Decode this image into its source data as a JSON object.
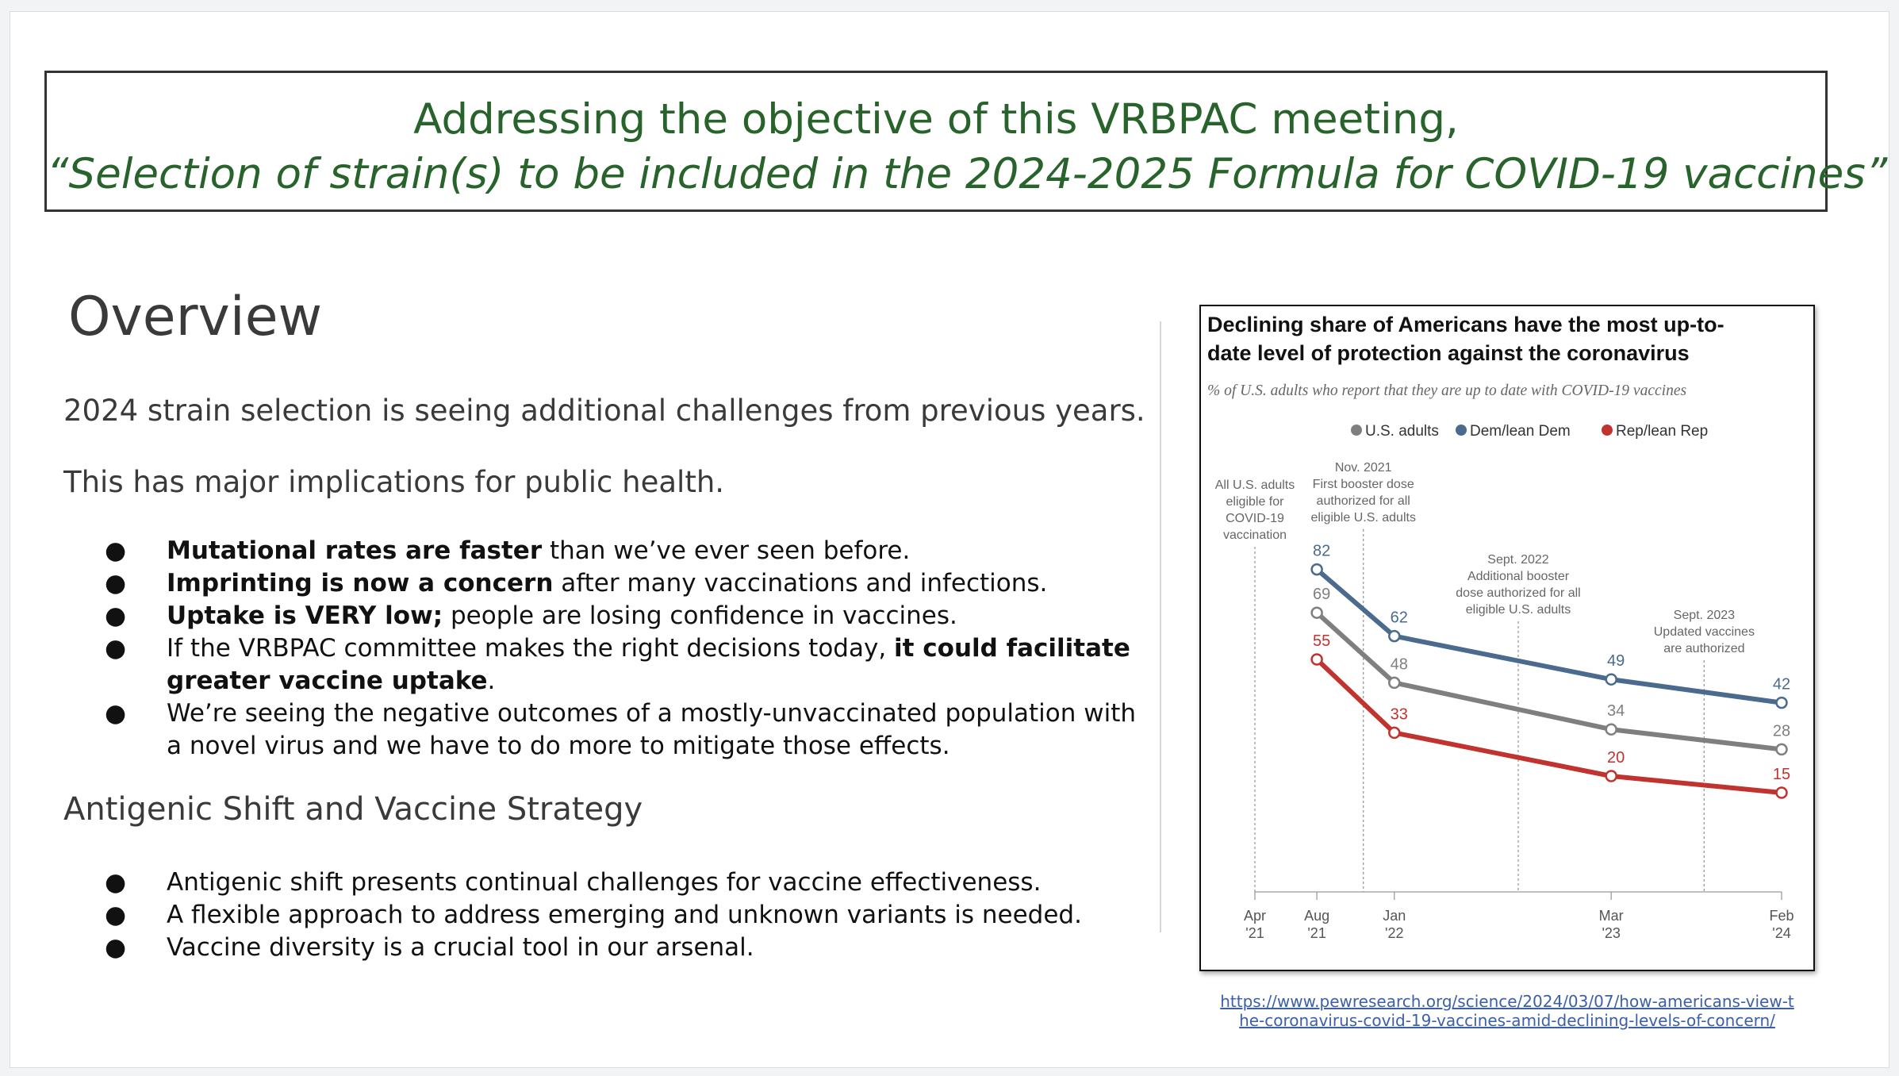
{
  "title": {
    "line1": "Addressing the objective of this VRBPAC meeting,",
    "line2": "“Selection of strain(s) to be included in the 2024-2025 Formula for COVID-19 vaccines”"
  },
  "overview": {
    "heading": "Overview",
    "para1": "2024 strain selection is seeing additional challenges from previous years.",
    "para2": "This has major implications for public health.",
    "bullets": [
      {
        "bold": "Mutational rates are faster",
        "rest": " than we’ve ever seen before."
      },
      {
        "bold": "Imprinting is now a concern",
        "rest": " after many vaccinations and infections."
      },
      {
        "bold": "Uptake is VERY low;",
        "rest": " people are losing confidence in vaccines."
      },
      {
        "pre": "If the VRBPAC committee makes the right decisions today, ",
        "bold": "it could facilitate greater vaccine uptake",
        "rest": "."
      },
      {
        "rest": "We’re seeing the negative outcomes of a mostly-unvaccinated population with a novel virus and we have to do more to mitigate those effects."
      }
    ],
    "bullet_char": "●"
  },
  "antigenic": {
    "heading": "Antigenic Shift and Vaccine Strategy",
    "bullets": [
      "Antigenic shift presents continual challenges for vaccine effectiveness.",
      "A flexible approach to address emerging and unknown variants is needed.",
      "Vaccine diversity is a crucial tool in our arsenal."
    ]
  },
  "source_link": "https://www.pewresearch.org/science/2024/03/07/how-americans-view-the-coronavirus-covid-19-vaccines-amid-declining-levels-of-concern/",
  "source_link_lines": [
    "https://www.pewresearch.org/science/2024/03/07/how-americans-view-t",
    "he-coronavirus-covid-19-vaccines-amid-declining-levels-of-concern/"
  ],
  "chart_data": {
    "type": "line",
    "title": "Declining share of Americans have the most up-to-date level of protection against the coronavirus",
    "title_lines": [
      "Declining share of Americans have the most up-to-",
      "date level of protection against the coronavirus"
    ],
    "subtitle": "% of U.S. adults who report that they are up to date with COVID-19 vaccines",
    "x": [
      "Aug '21",
      "Jan '22",
      "Mar '23",
      "Feb '24"
    ],
    "x_dates": [
      "2021-08",
      "2022-01",
      "2023-03",
      "2024-02"
    ],
    "x_ticks": [
      {
        "date": "2021-04",
        "lines": [
          "Apr",
          "'21"
        ]
      },
      {
        "date": "2021-08",
        "lines": [
          "Aug",
          "'21"
        ]
      },
      {
        "date": "2022-01",
        "lines": [
          "Jan",
          "'22"
        ]
      },
      {
        "date": "2023-03",
        "lines": [
          "Mar",
          "'23"
        ]
      },
      {
        "date": "2024-02",
        "lines": [
          "Feb",
          "'24"
        ]
      }
    ],
    "series": [
      {
        "name": "U.S. adults",
        "values": [
          69,
          48,
          34,
          28
        ],
        "color": "#7f7f7f"
      },
      {
        "name": "Dem/lean Dem",
        "values": [
          82,
          62,
          49,
          42
        ],
        "color": "#4a6a8e"
      },
      {
        "name": "Rep/lean Rep",
        "values": [
          55,
          33,
          20,
          15
        ],
        "color": "#c1332e"
      }
    ],
    "annotations": [
      {
        "date": "2021-04",
        "lines": [
          "All U.S. adults",
          "eligible for",
          "COVID-19",
          "vaccination"
        ]
      },
      {
        "date": "2021-11",
        "lines": [
          "Nov. 2021",
          "First booster dose",
          "authorized for all",
          "eligible U.S. adults"
        ]
      },
      {
        "date": "2022-09",
        "lines": [
          "Sept. 2022",
          "Additional booster",
          "dose authorized for all",
          "eligible U.S. adults"
        ]
      },
      {
        "date": "2023-09",
        "lines": [
          "Sept. 2023",
          "Updated vaccines",
          "are authorized"
        ]
      }
    ],
    "legend_position": "top-center",
    "grid": false
  }
}
